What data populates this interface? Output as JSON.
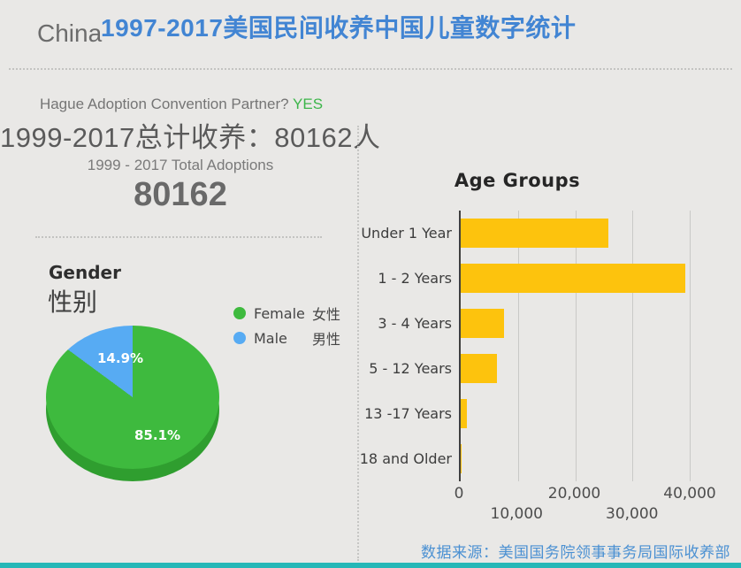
{
  "page": {
    "country_label": "China",
    "title": "1997-2017美国民间收养中国儿童数字统计",
    "hague_label": "Hague Adoption Convention Partner?",
    "hague_answer": "YES",
    "total_cn": "1999-2017总计收养：80162人",
    "total_en_label": "1999 - 2017 Total Adoptions",
    "total_value": "80162",
    "source": "数据来源：美国国务院领事事务局国际收养部"
  },
  "colors": {
    "title_blue": "#4285d3",
    "yes_green": "#3cb54a",
    "source_blue": "#4a90d2",
    "footer_teal": "#26b7b7"
  },
  "chart_data": [
    {
      "type": "pie",
      "title": "Gender",
      "title_cn": "性别",
      "legend_position": "right",
      "slices": [
        {
          "label": "Female 女性",
          "label_en": "Female",
          "label_cn": "女性",
          "value": 85.1,
          "pct_label": "85.1%",
          "color": "#3eba3e"
        },
        {
          "label": "Male 男性",
          "label_en": "Male",
          "label_cn": "男性",
          "value": 14.9,
          "pct_label": "14.9%",
          "color": "#57abf3"
        }
      ],
      "side_color": "#2f9e2f"
    },
    {
      "type": "bar",
      "orientation": "horizontal",
      "title": "Age Groups",
      "categories": [
        "Under 1 Year",
        "1 - 2 Years",
        "3 - 4 Years",
        "5 - 12 Years",
        "13 -17 Years",
        "18 and Older"
      ],
      "values": [
        25800,
        39200,
        7600,
        6400,
        1100,
        100
      ],
      "bar_color": "#fdc30d",
      "xlim": [
        0,
        40000
      ],
      "xticks": [
        0,
        10000,
        20000,
        30000,
        40000
      ],
      "xtick_labels": [
        "0",
        "10,000",
        "20,000",
        "30,000",
        "40,000"
      ],
      "grid": true
    }
  ]
}
